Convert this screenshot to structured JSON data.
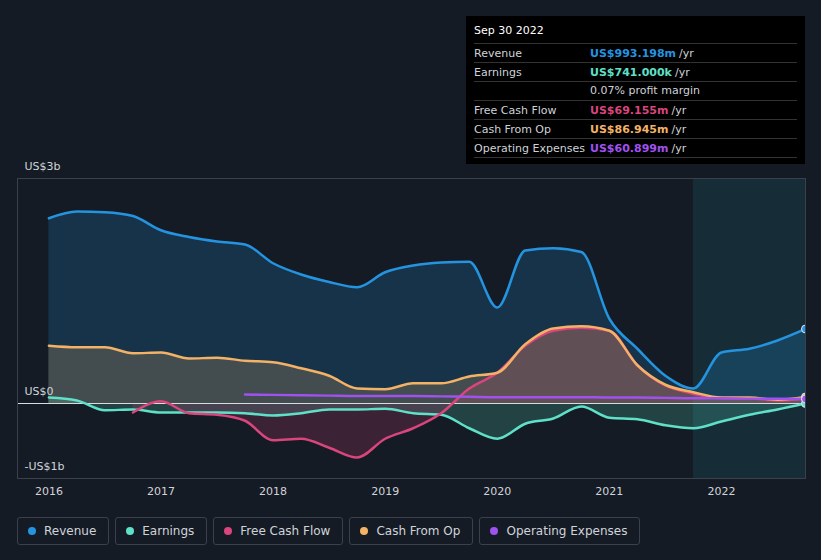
{
  "chart_data": {
    "type": "line",
    "x": [
      2016,
      2016.25,
      2016.5,
      2016.75,
      2017,
      2017.25,
      2017.5,
      2017.75,
      2018,
      2018.25,
      2018.5,
      2018.75,
      2019,
      2019.25,
      2019.5,
      2019.75,
      2020,
      2020.25,
      2020.5,
      2020.75,
      2021,
      2021.25,
      2021.5,
      2021.75,
      2022,
      2022.25,
      2022.5,
      2022.75
    ],
    "xlim": [
      2015.72,
      2022.75
    ],
    "xticks": [
      2016,
      2017,
      2018,
      2019,
      2020,
      2021,
      2022
    ],
    "ylim": [
      -1,
      3
    ],
    "yticks": [
      {
        "value": -1,
        "label": "-US$1b"
      },
      {
        "value": 0,
        "label": "US$0"
      },
      {
        "value": 3,
        "label": "US$3b"
      }
    ],
    "grid": true,
    "legend": "bottom",
    "series": [
      {
        "name": "Revenue",
        "color": "#2494e0",
        "type": "area",
        "values": [
          2.47,
          2.56,
          2.55,
          2.5,
          2.31,
          2.22,
          2.16,
          2.12,
          1.87,
          1.72,
          1.62,
          1.55,
          1.75,
          1.84,
          1.88,
          1.89,
          1.28,
          2.04,
          2.07,
          2.02,
          1.13,
          0.73,
          0.37,
          0.2,
          0.68,
          0.73,
          0.84,
          0.993198
        ]
      },
      {
        "name": "Earnings",
        "color": "#5fe0c8",
        "type": "area",
        "values": [
          0.08,
          0.04,
          -0.09,
          -0.08,
          -0.12,
          -0.12,
          -0.12,
          -0.13,
          -0.16,
          -0.13,
          -0.08,
          -0.08,
          -0.07,
          -0.13,
          -0.15,
          -0.33,
          -0.47,
          -0.27,
          -0.2,
          -0.04,
          -0.19,
          -0.21,
          -0.29,
          -0.33,
          -0.24,
          -0.15,
          -0.08,
          0.000741
        ]
      },
      {
        "name": "Free Cash Flow",
        "color": "#d9457c",
        "type": "area",
        "values": [
          null,
          null,
          null,
          -0.12,
          0.03,
          -0.13,
          -0.15,
          -0.23,
          -0.49,
          -0.47,
          -0.59,
          -0.72,
          -0.47,
          -0.33,
          -0.13,
          0.2,
          0.41,
          0.77,
          0.97,
          1.01,
          0.97,
          0.51,
          0.24,
          0.13,
          0.07,
          0.07,
          0.04,
          0.069155
        ]
      },
      {
        "name": "Cash From Op",
        "color": "#f4b266",
        "type": "area",
        "values": [
          0.77,
          0.75,
          0.75,
          0.67,
          0.68,
          0.6,
          0.61,
          0.57,
          0.55,
          0.47,
          0.37,
          0.2,
          0.19,
          0.27,
          0.27,
          0.36,
          0.41,
          0.79,
          1.0,
          1.03,
          0.97,
          0.51,
          0.25,
          0.15,
          0.08,
          0.08,
          0.05,
          0.086945
        ]
      },
      {
        "name": "Operating Expenses",
        "color": "#a052f0",
        "type": "line",
        "values": [
          null,
          null,
          null,
          null,
          null,
          null,
          null,
          0.12,
          0.115,
          0.11,
          0.105,
          0.1,
          0.1,
          0.1,
          0.095,
          0.09,
          0.085,
          0.085,
          0.085,
          0.085,
          0.08,
          0.08,
          0.075,
          0.07,
          0.07,
          0.065,
          0.063,
          0.060899
        ]
      }
    ],
    "tooltip": {
      "title": "Sep 30 2022",
      "rows": [
        {
          "label": "Revenue",
          "value": "US$993.198m",
          "suffix": "/yr"
        },
        {
          "label": "Earnings",
          "value": "US$741.000k",
          "suffix": "/yr",
          "note": "0.07% profit margin"
        },
        {
          "label": "Free Cash Flow",
          "value": "US$69.155m",
          "suffix": "/yr"
        },
        {
          "label": "Cash From Op",
          "value": "US$86.945m",
          "suffix": "/yr"
        },
        {
          "label": "Operating Expenses",
          "value": "US$60.899m",
          "suffix": "/yr"
        }
      ]
    }
  }
}
